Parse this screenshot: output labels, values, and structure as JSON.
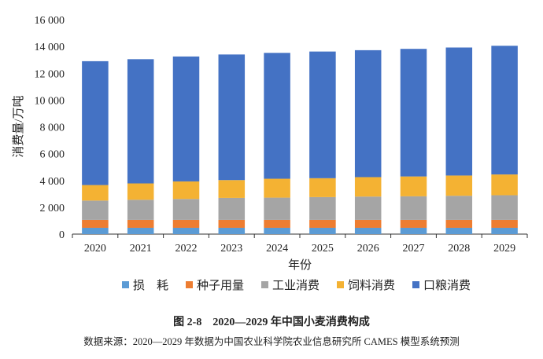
{
  "chart_data": {
    "type": "bar",
    "stacked": true,
    "title": "图 2-8　2020—2029 年中国小麦消费构成",
    "source": "数据来源：2020—2029 年数据为中国农业科学院农业信息研究所 CAMES 模型系统预测",
    "xlabel": "年份",
    "ylabel": "消费量/万吨",
    "ylim": [
      0,
      16000
    ],
    "yticks": [
      0,
      2000,
      4000,
      6000,
      8000,
      10000,
      12000,
      14000,
      16000
    ],
    "ytick_labels": [
      "0",
      "2 000",
      "4 000",
      "6 000",
      "8 000",
      "10 000",
      "12 000",
      "14 000",
      "16 000"
    ],
    "categories": [
      "2020",
      "2021",
      "2022",
      "2023",
      "2024",
      "2025",
      "2026",
      "2027",
      "2028",
      "2029"
    ],
    "legend_position": "bottom",
    "series": [
      {
        "name": "损　耗",
        "color": "#5b9bd5",
        "values": [
          470,
          470,
          470,
          470,
          470,
          470,
          470,
          470,
          470,
          470
        ]
      },
      {
        "name": "种子用量",
        "color": "#ed7d31",
        "values": [
          590,
          590,
          590,
          590,
          590,
          590,
          590,
          590,
          590,
          590
        ]
      },
      {
        "name": "工业消费",
        "color": "#a5a5a5",
        "values": [
          1440,
          1500,
          1560,
          1640,
          1660,
          1700,
          1740,
          1760,
          1800,
          1840
        ]
      },
      {
        "name": "饲料消费",
        "color": "#f4b233",
        "values": [
          1160,
          1220,
          1310,
          1330,
          1410,
          1410,
          1450,
          1480,
          1510,
          1550
        ]
      },
      {
        "name": "口粮消费",
        "color": "#4472c4",
        "values": [
          9240,
          9270,
          9320,
          9370,
          9390,
          9450,
          9470,
          9520,
          9550,
          9600
        ]
      }
    ]
  }
}
